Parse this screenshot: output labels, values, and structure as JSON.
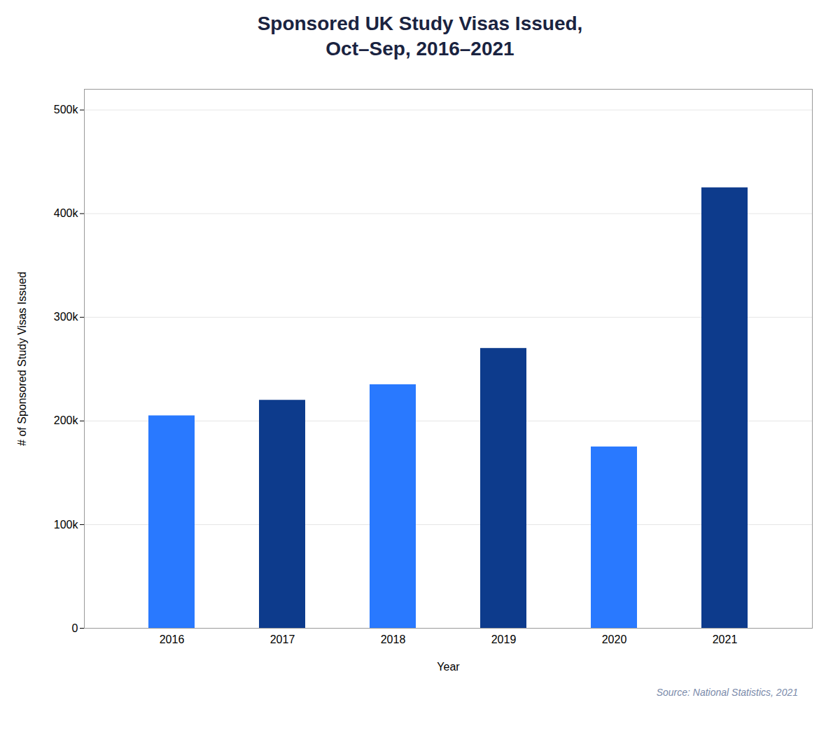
{
  "chart_data": {
    "type": "bar",
    "title": "Sponsored UK Study Visas Issued,\nOct–Sep, 2016–2021",
    "xlabel": "Year",
    "ylabel": "# of Sponsored Study Visas Issued",
    "categories": [
      "2016",
      "2017",
      "2018",
      "2019",
      "2020",
      "2021"
    ],
    "values": [
      205000,
      220000,
      235000,
      270000,
      175000,
      425000
    ],
    "colors": [
      "#2979FF",
      "#0D3B8C",
      "#2979FF",
      "#0D3B8C",
      "#2979FF",
      "#0D3B8C"
    ],
    "ylim": [
      0,
      520000
    ],
    "yticks": [
      0,
      {
        "value": 100000,
        "label": "100k"
      },
      {
        "value": 200000,
        "label": "200k"
      },
      {
        "value": 300000,
        "label": "300k"
      },
      {
        "value": 400000,
        "label": "400k"
      },
      {
        "value": 500000,
        "label": "500k"
      }
    ],
    "grid": true,
    "annotation": "Source: National Statistics, 2021"
  }
}
